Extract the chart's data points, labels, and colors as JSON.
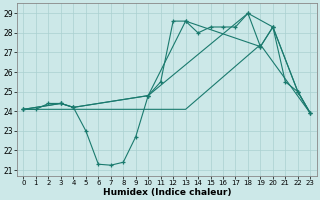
{
  "xlabel": "Humidex (Indice chaleur)",
  "bg_color": "#cce8e8",
  "line_color": "#1a7a6e",
  "grid_color": "#aad0d0",
  "xlim": [
    -0.5,
    23.5
  ],
  "ylim": [
    20.7,
    29.5
  ],
  "yticks": [
    21,
    22,
    23,
    24,
    25,
    26,
    27,
    28,
    29
  ],
  "xticks": [
    0,
    1,
    2,
    3,
    4,
    5,
    6,
    7,
    8,
    9,
    10,
    11,
    12,
    13,
    14,
    15,
    16,
    17,
    18,
    19,
    20,
    21,
    22,
    23
  ],
  "series": [
    {
      "x": [
        0,
        1,
        2,
        3,
        4,
        5,
        6,
        7,
        8,
        9,
        10,
        11,
        12,
        13,
        14,
        15,
        16,
        17,
        18,
        19,
        20,
        21,
        22,
        23
      ],
      "y": [
        24.1,
        24.1,
        24.4,
        24.4,
        24.2,
        23.0,
        21.3,
        21.25,
        21.4,
        22.7,
        24.8,
        25.5,
        28.6,
        28.6,
        28.0,
        28.3,
        28.3,
        28.3,
        29.0,
        27.3,
        28.3,
        25.5,
        25.0,
        23.9
      ],
      "markers": true
    },
    {
      "x": [
        0,
        3,
        4,
        10,
        13,
        19,
        20,
        22,
        23
      ],
      "y": [
        24.1,
        24.4,
        24.2,
        24.8,
        28.6,
        27.3,
        28.3,
        25.0,
        23.9
      ],
      "markers": true
    },
    {
      "x": [
        0,
        13,
        19,
        23
      ],
      "y": [
        24.1,
        24.1,
        27.4,
        23.9
      ],
      "markers": false
    },
    {
      "x": [
        0,
        3,
        4,
        10,
        18,
        20,
        22,
        23
      ],
      "y": [
        24.1,
        24.4,
        24.2,
        24.8,
        29.0,
        28.3,
        25.0,
        23.9
      ],
      "markers": true
    }
  ]
}
